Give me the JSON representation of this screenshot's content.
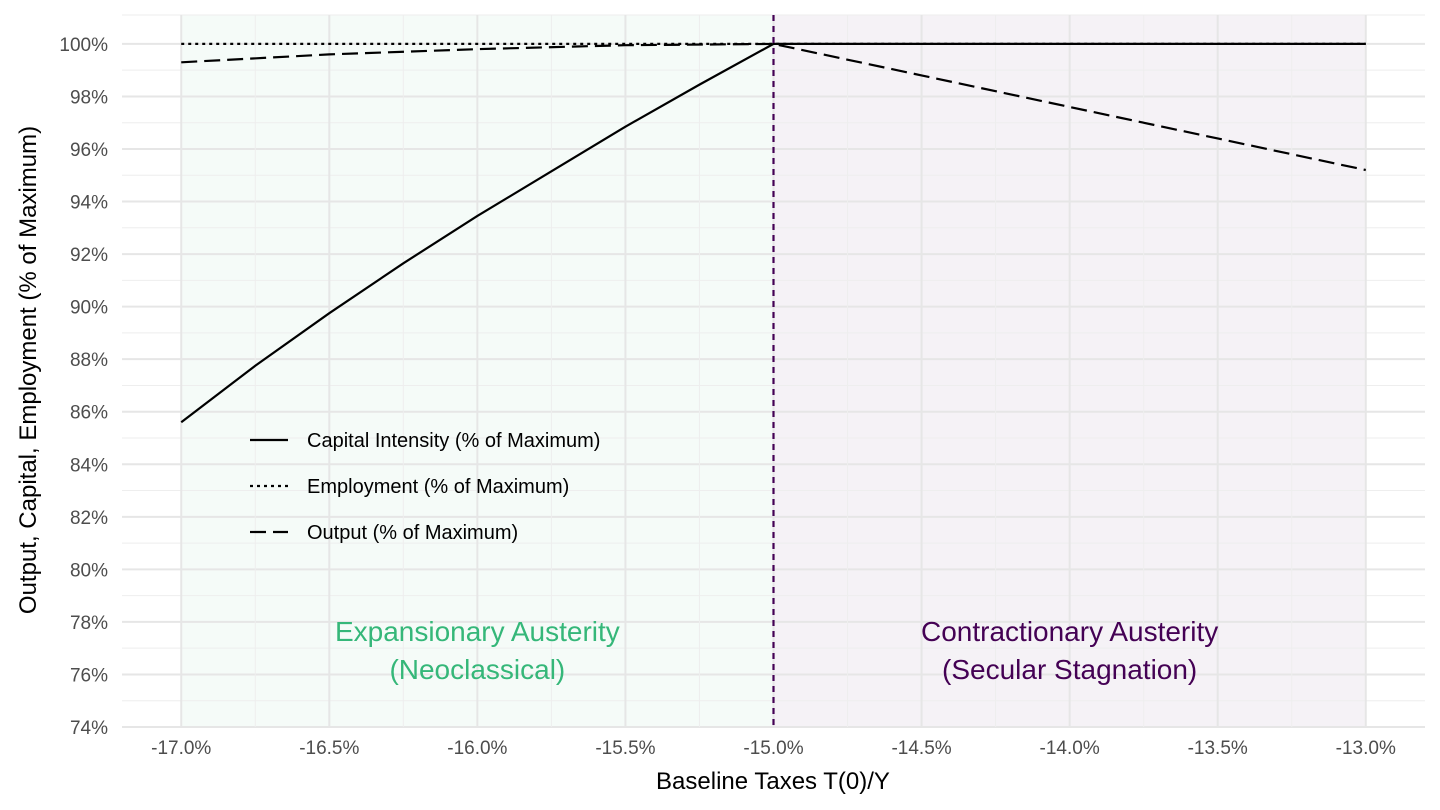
{
  "chart_data": {
    "type": "line",
    "xlabel": "Baseline Taxes T(0)/Y",
    "ylabel": "Output, Capital, Employment (% of Maximum)",
    "xlim": [
      -17.2,
      -12.8
    ],
    "ylim": [
      74,
      101.1
    ],
    "x_ticks": [
      -17.0,
      -16.5,
      -16.0,
      -15.5,
      -15.0,
      -14.5,
      -14.0,
      -13.5,
      -13.0
    ],
    "x_tick_labels": [
      "-17.0%",
      "-16.5%",
      "-16.0%",
      "-15.5%",
      "-15.0%",
      "-14.5%",
      "-14.0%",
      "-13.5%",
      "-13.0%"
    ],
    "y_ticks": [
      74,
      76,
      78,
      80,
      82,
      84,
      86,
      88,
      90,
      92,
      94,
      96,
      98,
      100
    ],
    "y_tick_labels": [
      "74%",
      "76%",
      "78%",
      "80%",
      "82%",
      "84%",
      "86%",
      "88%",
      "90%",
      "92%",
      "94%",
      "96%",
      "98%",
      "100%"
    ],
    "grid": true,
    "legend_position": "bottom-left",
    "threshold_x": -15.0,
    "threshold_color": "#440154",
    "regions": [
      {
        "x_range": [
          -17.0,
          -15.0
        ],
        "color": "#35b779",
        "label_line1": "Expansionary Austerity",
        "label_line2": "(Neoclassical)"
      },
      {
        "x_range": [
          -15.0,
          -13.0
        ],
        "color": "#440154",
        "label_line1": "Contractionary Austerity",
        "label_line2": "(Secular Stagnation)"
      }
    ],
    "series": [
      {
        "name": "Capital Intensity (% of Maximum)",
        "dash": "solid",
        "x": [
          -17.0,
          -16.75,
          -16.5,
          -16.25,
          -16.0,
          -15.75,
          -15.5,
          -15.25,
          -15.0,
          -14.5,
          -14.0,
          -13.5,
          -13.0
        ],
        "y": [
          85.6,
          87.75,
          89.75,
          91.65,
          93.45,
          95.15,
          96.85,
          98.45,
          100.0,
          100.0,
          100.0,
          100.0,
          100.0
        ]
      },
      {
        "name": "Employment (% of Maximum)",
        "dash": "dotted",
        "x": [
          -17.0,
          -16.0,
          -15.0,
          -14.0,
          -13.0
        ],
        "y": [
          100.0,
          100.0,
          100.0,
          100.0,
          100.0
        ]
      },
      {
        "name": "Output (% of Maximum)",
        "dash": "dashed",
        "x": [
          -17.0,
          -16.5,
          -16.0,
          -15.5,
          -15.0,
          -14.5,
          -14.0,
          -13.5,
          -13.0
        ],
        "y": [
          99.3,
          99.6,
          99.8,
          99.95,
          100.0,
          98.8,
          97.6,
          96.4,
          95.2
        ]
      }
    ]
  }
}
